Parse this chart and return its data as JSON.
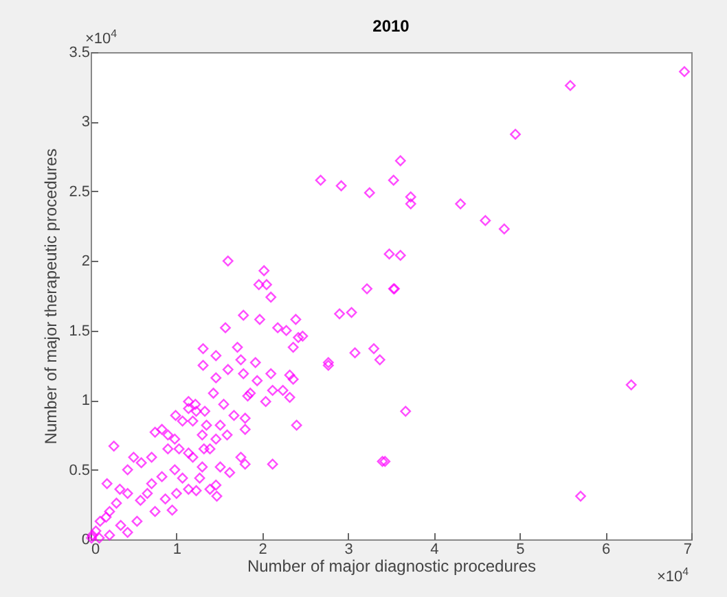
{
  "chart_data": {
    "type": "scatter",
    "title": "2010",
    "xlabel": "Number of major diagnostic procedures",
    "ylabel": "Number of major therapeutic procedures",
    "annotations": [
      "×10$^{4}$",
      "×10$^{4}$"
    ],
    "marker": "diamond",
    "grid": false,
    "xlim": [
      0,
      7
    ],
    "xticks": [
      0,
      1,
      2,
      3,
      4,
      5,
      6,
      7
    ],
    "ylim": [
      0,
      3.5
    ],
    "yticks": [
      0,
      0.5,
      1,
      1.5,
      2,
      2.5,
      3,
      3.5
    ],
    "series": [
      {
        "color": "#ff00ff",
        "x": [
          6.92,
          5.59,
          4.95,
          2.68,
          2.92,
          3.25,
          3.53,
          3.61,
          3.73,
          3.73,
          4.31,
          4.6,
          4.82,
          3.48,
          3.61,
          3.54,
          6.3,
          3.67,
          3.43,
          5.71,
          1.6,
          2.02,
          1.96,
          2.05,
          2.1,
          1.78,
          1.57,
          1.97,
          2.18,
          2.28,
          2.39,
          2.42,
          2.47,
          2.36,
          2.9,
          3.04,
          3.22,
          3.53,
          2.77,
          2.77,
          3.08,
          3.3,
          3.37,
          3.4,
          1.31,
          1.46,
          1.31,
          1.71,
          1.75,
          1.92,
          1.6,
          1.46,
          2.1,
          1.78,
          1.94,
          2.32,
          2.36,
          1.43,
          1.86,
          2.12,
          2.24,
          2.32,
          2.04,
          1.83,
          2.4,
          1.22,
          1.14,
          1.19,
          1.55,
          1.67,
          1.8,
          1.8,
          1.51,
          1.35,
          1.46,
          1.75,
          1.8,
          1.51,
          1.62,
          2.12,
          1.46,
          1.39,
          1.47,
          1.23,
          0.27,
          0.75,
          0.83,
          0.98,
          1.07,
          1.03,
          1.14,
          0.9,
          0.71,
          0.59,
          0.5,
          0.43,
          1.3,
          1.19,
          0.98,
          0.83,
          0.71,
          1.07,
          1.27,
          1.14,
          1.0,
          0.87,
          0.95,
          0.75,
          0.58,
          0.43,
          0.19,
          0.34,
          0.54,
          0.43,
          0.22,
          0.11,
          0.02,
          0.06,
          0.18,
          0.3,
          0.01,
          0.1,
          0.22,
          0.35,
          0.66,
          1.14,
          1.23,
          1.33,
          0.99,
          0.9,
          1.3,
          1.39,
          1.32,
          1.59
        ],
        "values": [
          3.36,
          3.26,
          2.91,
          2.58,
          2.54,
          2.49,
          2.58,
          2.72,
          2.46,
          2.41,
          2.41,
          2.29,
          2.23,
          2.05,
          2.04,
          1.8,
          1.11,
          0.92,
          0.56,
          0.31,
          2.0,
          1.93,
          1.83,
          1.83,
          1.74,
          1.61,
          1.52,
          1.58,
          1.52,
          1.5,
          1.58,
          1.45,
          1.46,
          1.38,
          1.62,
          1.63,
          1.8,
          1.8,
          1.27,
          1.25,
          1.34,
          1.37,
          1.29,
          0.56,
          1.37,
          1.32,
          1.25,
          1.38,
          1.29,
          1.27,
          1.22,
          1.16,
          1.19,
          1.19,
          1.14,
          1.18,
          1.15,
          1.05,
          1.05,
          1.07,
          1.07,
          1.02,
          0.99,
          1.03,
          0.82,
          0.97,
          0.94,
          0.85,
          0.97,
          0.89,
          0.87,
          0.79,
          0.82,
          0.82,
          0.72,
          0.59,
          0.54,
          0.52,
          0.48,
          0.54,
          0.39,
          0.36,
          0.31,
          0.35,
          0.67,
          0.77,
          0.79,
          0.72,
          0.85,
          0.65,
          0.62,
          0.65,
          0.59,
          0.55,
          0.59,
          0.5,
          0.52,
          0.59,
          0.5,
          0.45,
          0.4,
          0.44,
          0.44,
          0.36,
          0.33,
          0.29,
          0.21,
          0.2,
          0.28,
          0.33,
          0.4,
          0.36,
          0.13,
          0.05,
          0.2,
          0.13,
          0.03,
          0.06,
          0.16,
          0.26,
          0.01,
          0.01,
          0.03,
          0.1,
          0.33,
          0.99,
          0.92,
          0.92,
          0.89,
          0.75,
          0.75,
          0.65,
          0.65,
          0.75
        ]
      }
    ]
  }
}
